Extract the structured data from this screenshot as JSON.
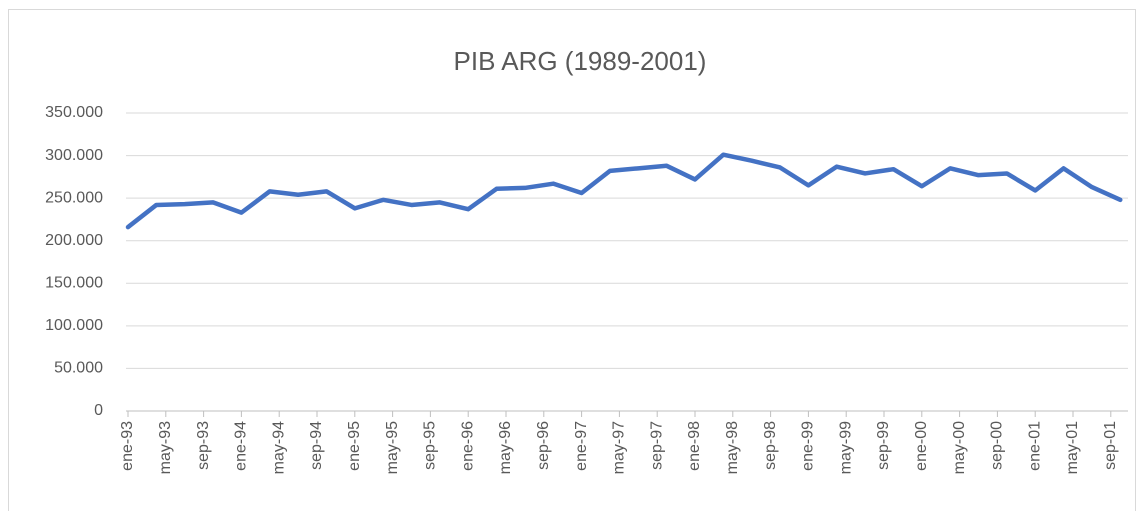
{
  "chart_data": {
    "type": "line",
    "title": "PIB ARG (1989-2001)",
    "x": [
      "1993-01",
      "1993-04",
      "1993-07",
      "1993-10",
      "1994-01",
      "1994-04",
      "1994-07",
      "1994-10",
      "1995-01",
      "1995-04",
      "1995-07",
      "1995-10",
      "1996-01",
      "1996-04",
      "1996-07",
      "1996-10",
      "1997-01",
      "1997-04",
      "1997-07",
      "1997-10",
      "1998-01",
      "1998-04",
      "1998-07",
      "1998-10",
      "1999-01",
      "1999-04",
      "1999-07",
      "1999-10",
      "2000-01",
      "2000-04",
      "2000-07",
      "2000-10",
      "2001-01",
      "2001-04",
      "2001-07",
      "2001-10"
    ],
    "series": [
      {
        "color": "#4472c4",
        "values": [
          216000,
          242000,
          243000,
          245000,
          233000,
          258000,
          254000,
          258000,
          238000,
          248000,
          242000,
          245000,
          237000,
          261000,
          262000,
          267000,
          256000,
          282000,
          285000,
          288000,
          272000,
          301000,
          294000,
          286000,
          265000,
          287000,
          279000,
          284000,
          264000,
          285000,
          277000,
          279000,
          259000,
          285000,
          263000,
          248000
        ]
      }
    ],
    "xticks": [
      {
        "value": "1993-01",
        "label": "ene-93"
      },
      {
        "value": "1993-05",
        "label": "may-93"
      },
      {
        "value": "1993-09",
        "label": "sep-93"
      },
      {
        "value": "1994-01",
        "label": "ene-94"
      },
      {
        "value": "1994-05",
        "label": "may-94"
      },
      {
        "value": "1994-09",
        "label": "sep-94"
      },
      {
        "value": "1995-01",
        "label": "ene-95"
      },
      {
        "value": "1995-05",
        "label": "may-95"
      },
      {
        "value": "1995-09",
        "label": "sep-95"
      },
      {
        "value": "1996-01",
        "label": "ene-96"
      },
      {
        "value": "1996-05",
        "label": "may-96"
      },
      {
        "value": "1996-09",
        "label": "sep-96"
      },
      {
        "value": "1997-01",
        "label": "ene-97"
      },
      {
        "value": "1997-05",
        "label": "may-97"
      },
      {
        "value": "1997-09",
        "label": "sep-97"
      },
      {
        "value": "1998-01",
        "label": "ene-98"
      },
      {
        "value": "1998-05",
        "label": "may-98"
      },
      {
        "value": "1998-09",
        "label": "sep-98"
      },
      {
        "value": "1999-01",
        "label": "ene-99"
      },
      {
        "value": "1999-05",
        "label": "may-99"
      },
      {
        "value": "1999-09",
        "label": "sep-99"
      },
      {
        "value": "2000-01",
        "label": "ene-00"
      },
      {
        "value": "2000-05",
        "label": "may-00"
      },
      {
        "value": "2000-09",
        "label": "sep-00"
      },
      {
        "value": "2001-01",
        "label": "ene-01"
      },
      {
        "value": "2001-05",
        "label": "may-01"
      },
      {
        "value": "2001-09",
        "label": "sep-01"
      }
    ],
    "ylim": [
      0,
      350000
    ],
    "yticks": [
      0,
      {
        "value": 50000,
        "label": "50.000"
      },
      {
        "value": 100000,
        "label": "100.000"
      },
      {
        "value": 150000,
        "label": "150.000"
      },
      {
        "value": 200000,
        "label": "200.000"
      },
      {
        "value": 250000,
        "label": "250.000"
      },
      {
        "value": 300000,
        "label": "300.000"
      },
      {
        "value": 350000,
        "label": "350.000"
      }
    ],
    "grid": true
  }
}
